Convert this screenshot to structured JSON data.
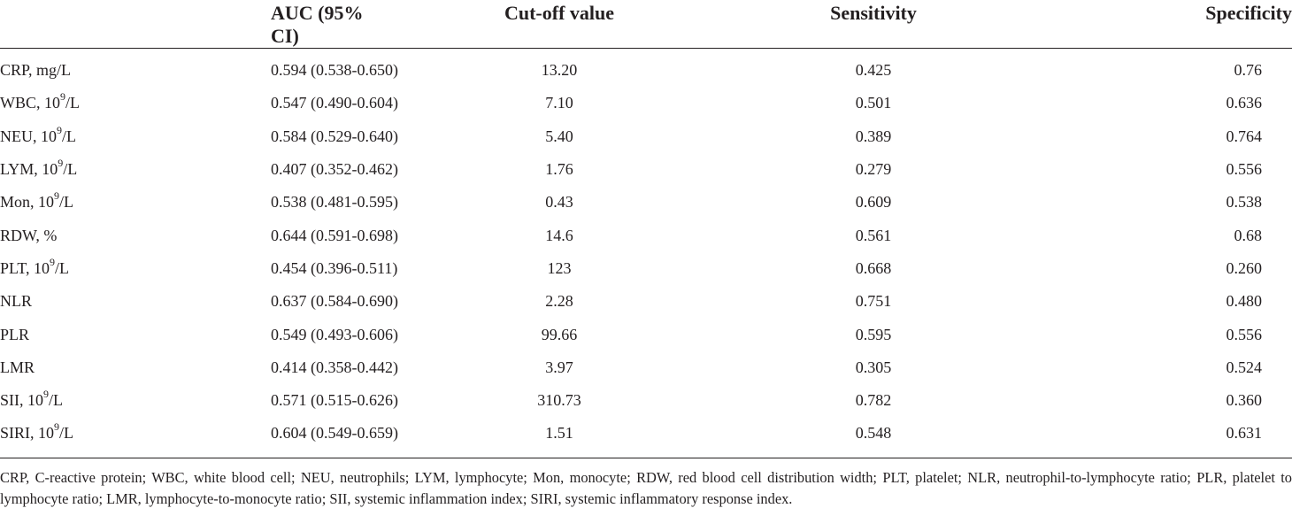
{
  "headers": [
    "",
    "AUC (95% CI)",
    "Cut-off value",
    "Sensitivity",
    "Specificity"
  ],
  "rows": [
    {
      "name": "CRP, mg/L",
      "sup": "",
      "unit": "",
      "auc": "0.594 (0.538-0.650)",
      "cutoff": "13.20",
      "sensitivity": "0.425",
      "specificity": "0.76"
    },
    {
      "name": "WBC, 10",
      "sup": "9",
      "unit": "/L",
      "auc": "0.547 (0.490-0.604)",
      "cutoff": "7.10",
      "sensitivity": "0.501",
      "specificity": "0.636"
    },
    {
      "name": "NEU, 10",
      "sup": "9",
      "unit": "/L",
      "auc": "0.584 (0.529-0.640)",
      "cutoff": "5.40",
      "sensitivity": "0.389",
      "specificity": "0.764"
    },
    {
      "name": "LYM, 10",
      "sup": "9",
      "unit": "/L",
      "auc": "0.407 (0.352-0.462)",
      "cutoff": "1.76",
      "sensitivity": "0.279",
      "specificity": "0.556"
    },
    {
      "name": "Mon, 10",
      "sup": "9",
      "unit": "/L",
      "auc": "0.538 (0.481-0.595)",
      "cutoff": "0.43",
      "sensitivity": "0.609",
      "specificity": "0.538"
    },
    {
      "name": "RDW, %",
      "sup": "",
      "unit": "",
      "auc": "0.644 (0.591-0.698)",
      "cutoff": "14.6",
      "sensitivity": "0.561",
      "specificity": "0.68"
    },
    {
      "name": "PLT, 10",
      "sup": "9",
      "unit": "/L",
      "auc": "0.454 (0.396-0.511)",
      "cutoff": "123",
      "sensitivity": "0.668",
      "specificity": "0.260"
    },
    {
      "name": "NLR",
      "sup": "",
      "unit": "",
      "auc": "0.637 (0.584-0.690)",
      "cutoff": "2.28",
      "sensitivity": "0.751",
      "specificity": "0.480"
    },
    {
      "name": "PLR",
      "sup": "",
      "unit": "",
      "auc": "0.549 (0.493-0.606)",
      "cutoff": "99.66",
      "sensitivity": "0.595",
      "specificity": "0.556"
    },
    {
      "name": "LMR",
      "sup": "",
      "unit": "",
      "auc": "0.414 (0.358-0.442)",
      "cutoff": "3.97",
      "sensitivity": "0.305",
      "specificity": "0.524"
    },
    {
      "name": "SII, 10",
      "sup": "9",
      "unit": "/L",
      "auc": "0.571 (0.515-0.626)",
      "cutoff": "310.73",
      "sensitivity": "0.782",
      "specificity": "0.360"
    },
    {
      "name": "SIRI, 10",
      "sup": "9",
      "unit": "/L",
      "auc": "0.604 (0.549-0.659)",
      "cutoff": "1.51",
      "sensitivity": "0.548",
      "specificity": "0.631"
    }
  ],
  "footnote": "CRP, C-reactive protein; WBC, white blood cell; NEU, neutrophils; LYM, lymphocyte; Mon, monocyte; RDW, red blood cell distribution width; PLT, platelet; NLR, neutrophil-to-lymphocyte ratio; PLR, platelet to lymphocyte ratio; LMR, lymphocyte-to-monocyte ratio; SII, systemic inflammation index; SIRI, systemic inflammatory response index."
}
